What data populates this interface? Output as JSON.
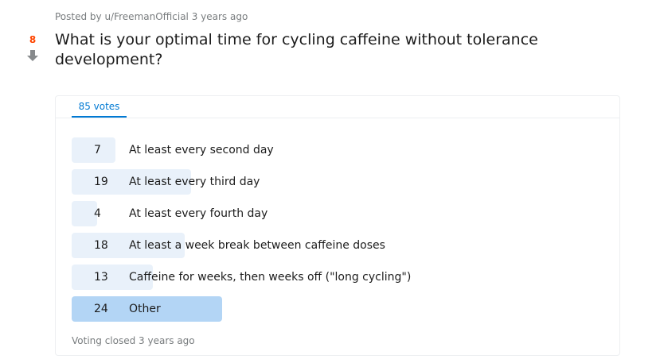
{
  "post": {
    "meta": "Posted by u/FreemanOfficial 3 years ago",
    "score": "8",
    "title": "What is your optimal time for cycling caffeine without tolerance development?"
  },
  "poll": {
    "votes_tab": "85 votes",
    "total_votes": 85,
    "options": [
      {
        "count": "7",
        "label": "At least every second day",
        "share": 0.292
      },
      {
        "count": "19",
        "label": "At least every third day",
        "share": 0.792
      },
      {
        "count": "4",
        "label": "At least every fourth day",
        "share": 0.167
      },
      {
        "count": "18",
        "label": "At least a week break between caffeine doses",
        "share": 0.75
      },
      {
        "count": "13",
        "label": "Caffeine for weeks, then weeks off (\"long cycling\")",
        "share": 0.542
      },
      {
        "count": "24",
        "label": "Other",
        "share": 1.0,
        "winner": true
      }
    ],
    "closed_text": "Voting closed 3 years ago"
  },
  "icons": {
    "downvote": "down-arrow-icon"
  },
  "colors": {
    "score": "#ff4500",
    "accent": "#0079d3",
    "bar": "#e9f1fa",
    "winner_bar": "#b3d5f5"
  }
}
